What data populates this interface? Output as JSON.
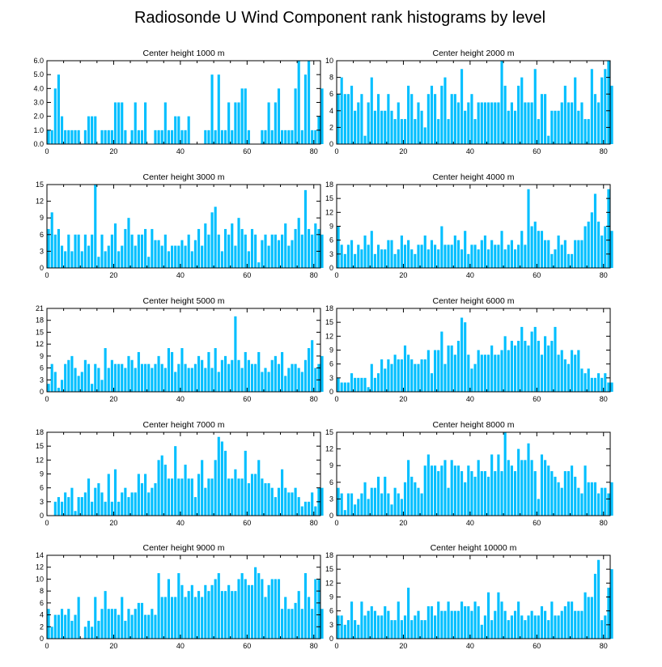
{
  "figure_title": "Radiosonde U Wind Component rank histograms by level",
  "colors": {
    "bar": "#00bfff",
    "axis": "#000000",
    "background": "#ffffff"
  },
  "chart_data": [
    {
      "type": "bar",
      "title": "Center height 1000 m",
      "xlim": [
        0,
        82
      ],
      "ylim": [
        0,
        6
      ],
      "xticks": [
        0,
        20,
        40,
        60,
        80
      ],
      "yticks": [
        0,
        1,
        2,
        3,
        4,
        5,
        6
      ],
      "ytick_labels": [
        "0.0",
        "1.0",
        "2.0",
        "3.0",
        "4.0",
        "5.0",
        "6.0"
      ],
      "values": [
        1,
        1,
        4,
        5,
        2,
        1,
        1,
        1,
        1,
        1,
        0,
        1,
        2,
        2,
        2,
        0,
        1,
        1,
        1,
        1,
        3,
        3,
        3,
        1,
        0,
        1,
        3,
        1,
        1,
        3,
        0,
        0,
        1,
        1,
        1,
        3,
        1,
        1,
        2,
        2,
        1,
        1,
        2,
        0,
        0,
        0,
        0,
        1,
        1,
        5,
        1,
        5,
        1,
        1,
        3,
        1,
        3,
        3,
        4,
        4,
        1,
        0,
        0,
        0,
        1,
        1,
        3,
        1,
        3,
        4,
        1,
        1,
        1,
        1,
        4,
        6,
        1,
        5,
        6,
        1,
        1,
        2,
        4
      ]
    },
    {
      "type": "bar",
      "title": "Center height 2000 m",
      "xlim": [
        0,
        82
      ],
      "ylim": [
        0,
        10
      ],
      "xticks": [
        0,
        20,
        40,
        60,
        80
      ],
      "yticks": [
        0,
        2,
        4,
        6,
        8,
        10
      ],
      "ytick_labels": [
        "0",
        "2",
        "4",
        "6",
        "8",
        "10"
      ],
      "values": [
        6,
        8,
        6,
        6,
        7,
        4,
        5,
        6,
        1,
        5,
        8,
        4,
        6,
        4,
        4,
        6,
        4,
        3,
        5,
        3,
        3,
        7,
        6,
        3,
        5,
        4,
        2,
        6,
        7,
        6,
        3,
        7,
        8,
        3,
        6,
        6,
        5,
        9,
        4,
        5,
        6,
        3,
        5,
        5,
        5,
        5,
        5,
        5,
        5,
        10,
        7,
        4,
        5,
        4,
        7,
        8,
        5,
        5,
        5,
        9,
        3,
        6,
        6,
        1,
        4,
        4,
        4,
        5,
        7,
        5,
        5,
        8,
        4,
        5,
        3,
        3,
        9,
        6,
        5,
        8,
        9,
        10,
        7
      ]
    },
    {
      "type": "bar",
      "title": "Center height 3000 m",
      "xlim": [
        0,
        82
      ],
      "ylim": [
        0,
        15
      ],
      "xticks": [
        0,
        20,
        40,
        60,
        80
      ],
      "yticks": [
        0,
        3,
        6,
        9,
        12,
        15
      ],
      "ytick_labels": [
        "0",
        "3",
        "6",
        "9",
        "12",
        "15"
      ],
      "values": [
        7,
        10,
        6,
        7,
        4,
        3,
        6,
        3,
        6,
        6,
        3,
        6,
        4,
        6,
        15,
        2,
        6,
        3,
        4,
        6,
        8,
        3,
        4,
        7,
        9,
        6,
        4,
        6,
        6,
        7,
        2,
        7,
        5,
        5,
        4,
        6,
        3,
        4,
        4,
        4,
        5,
        4,
        6,
        3,
        5,
        7,
        4,
        8,
        6,
        10,
        11,
        6,
        3,
        7,
        6,
        8,
        4,
        9,
        7,
        6,
        3,
        7,
        6,
        1,
        5,
        6,
        4,
        6,
        6,
        5,
        6,
        8,
        4,
        5,
        7,
        9,
        6,
        14,
        7,
        6,
        8,
        7,
        6
      ]
    },
    {
      "type": "bar",
      "title": "Center height 4000 m",
      "xlim": [
        0,
        82
      ],
      "ylim": [
        0,
        18
      ],
      "xticks": [
        0,
        20,
        40,
        60,
        80
      ],
      "yticks": [
        0,
        3,
        6,
        9,
        12,
        15,
        18
      ],
      "ytick_labels": [
        "0",
        "3",
        "6",
        "9",
        "12",
        "15",
        "18"
      ],
      "values": [
        9,
        5,
        3,
        5,
        6,
        3,
        5,
        4,
        7,
        5,
        8,
        3,
        5,
        4,
        4,
        6,
        6,
        3,
        4,
        7,
        5,
        6,
        4,
        3,
        5,
        5,
        7,
        4,
        6,
        5,
        4,
        9,
        5,
        5,
        5,
        7,
        6,
        4,
        8,
        3,
        5,
        5,
        4,
        6,
        7,
        4,
        6,
        5,
        5,
        8,
        4,
        5,
        6,
        4,
        5,
        8,
        5,
        17,
        9,
        10,
        8,
        8,
        6,
        6,
        3,
        4,
        7,
        5,
        6,
        3,
        3,
        6,
        6,
        6,
        9,
        10,
        12,
        16,
        10,
        7,
        9,
        17,
        8
      ]
    },
    {
      "type": "bar",
      "title": "Center height 5000 m",
      "xlim": [
        0,
        82
      ],
      "ylim": [
        0,
        21
      ],
      "xticks": [
        0,
        20,
        40,
        60,
        80
      ],
      "yticks": [
        0,
        3,
        6,
        9,
        12,
        15,
        18,
        21
      ],
      "ytick_labels": [
        "0",
        "3",
        "6",
        "9",
        "12",
        "15",
        "18",
        "21"
      ],
      "values": [
        2,
        7,
        5,
        1,
        3,
        7,
        8,
        9,
        6,
        4,
        5,
        8,
        7,
        2,
        7,
        6,
        3,
        11,
        6,
        8,
        7,
        7,
        7,
        6,
        9,
        8,
        6,
        10,
        7,
        7,
        7,
        6,
        7,
        9,
        7,
        6,
        11,
        10,
        5,
        7,
        11,
        7,
        6,
        6,
        7,
        9,
        8,
        6,
        10,
        6,
        11,
        5,
        8,
        9,
        7,
        8,
        19,
        8,
        6,
        10,
        8,
        7,
        7,
        10,
        5,
        6,
        5,
        8,
        9,
        7,
        10,
        4,
        6,
        7,
        7,
        6,
        5,
        8,
        11,
        13,
        6,
        7,
        9
      ]
    },
    {
      "type": "bar",
      "title": "Center height 6000 m",
      "xlim": [
        0,
        82
      ],
      "ylim": [
        0,
        18
      ],
      "xticks": [
        0,
        20,
        40,
        60,
        80
      ],
      "yticks": [
        0,
        3,
        6,
        9,
        12,
        15,
        18
      ],
      "ytick_labels": [
        "0",
        "3",
        "6",
        "9",
        "12",
        "15",
        "18"
      ],
      "values": [
        3,
        2,
        2,
        2,
        4,
        3,
        3,
        3,
        3,
        1,
        6,
        3,
        4,
        7,
        5,
        7,
        6,
        8,
        7,
        7,
        10,
        8,
        7,
        6,
        6,
        7,
        7,
        9,
        4,
        9,
        9,
        13,
        6,
        10,
        10,
        8,
        11,
        16,
        15,
        8,
        5,
        6,
        9,
        8,
        8,
        8,
        10,
        8,
        8,
        9,
        12,
        9,
        11,
        10,
        11,
        14,
        11,
        10,
        13,
        14,
        11,
        8,
        12,
        10,
        11,
        14,
        8,
        9,
        7,
        6,
        9,
        8,
        9,
        5,
        4,
        5,
        3,
        3,
        4,
        3,
        4,
        2,
        2
      ]
    },
    {
      "type": "bar",
      "title": "Center height 7000 m",
      "xlim": [
        0,
        82
      ],
      "ylim": [
        0,
        18
      ],
      "xticks": [
        0,
        20,
        40,
        60,
        80
      ],
      "yticks": [
        0,
        3,
        6,
        9,
        12,
        15,
        18
      ],
      "ytick_labels": [
        "0",
        "3",
        "6",
        "9",
        "12",
        "15",
        "18"
      ],
      "values": [
        0,
        0,
        3,
        4,
        3,
        5,
        4,
        6,
        1,
        4,
        4,
        5,
        8,
        3,
        6,
        7,
        5,
        3,
        9,
        3,
        10,
        3,
        5,
        6,
        4,
        5,
        5,
        9,
        7,
        9,
        5,
        6,
        7,
        12,
        13,
        11,
        8,
        8,
        15,
        8,
        8,
        11,
        8,
        8,
        4,
        9,
        12,
        6,
        8,
        8,
        12,
        17,
        16,
        14,
        8,
        8,
        10,
        8,
        8,
        14,
        7,
        9,
        9,
        12,
        8,
        7,
        7,
        6,
        4,
        6,
        10,
        6,
        5,
        5,
        6,
        4,
        2,
        3,
        3,
        5,
        2,
        6,
        6
      ]
    },
    {
      "type": "bar",
      "title": "Center height 8000 m",
      "xlim": [
        0,
        82
      ],
      "ylim": [
        0,
        15
      ],
      "xticks": [
        0,
        20,
        40,
        60,
        80
      ],
      "yticks": [
        0,
        3,
        6,
        9,
        12,
        15
      ],
      "ytick_labels": [
        "0",
        "3",
        "6",
        "9",
        "12",
        "15"
      ],
      "values": [
        5,
        4,
        1,
        4,
        4,
        2,
        3,
        4,
        6,
        3,
        5,
        5,
        7,
        4,
        7,
        4,
        2,
        5,
        4,
        3,
        6,
        10,
        7,
        6,
        5,
        4,
        9,
        11,
        9,
        9,
        8,
        9,
        10,
        5,
        10,
        9,
        9,
        8,
        6,
        9,
        8,
        7,
        10,
        8,
        8,
        7,
        11,
        8,
        11,
        8,
        15,
        10,
        9,
        8,
        12,
        10,
        10,
        13,
        10,
        8,
        3,
        11,
        10,
        9,
        8,
        7,
        6,
        5,
        8,
        8,
        9,
        7,
        5,
        4,
        9,
        6,
        6,
        6,
        4,
        5,
        5,
        4,
        6
      ]
    },
    {
      "type": "bar",
      "title": "Center height 9000 m",
      "xlim": [
        0,
        82
      ],
      "ylim": [
        0,
        14
      ],
      "xticks": [
        0,
        20,
        40,
        60,
        80
      ],
      "yticks": [
        0,
        2,
        4,
        6,
        8,
        10,
        12,
        14
      ],
      "ytick_labels": [
        "0",
        "2",
        "4",
        "6",
        "8",
        "10",
        "12",
        "14"
      ],
      "values": [
        5,
        2,
        4,
        4,
        5,
        4,
        5,
        3,
        4,
        7,
        0,
        2,
        3,
        2,
        7,
        3,
        5,
        8,
        5,
        5,
        5,
        4,
        7,
        3,
        5,
        4,
        5,
        6,
        6,
        4,
        4,
        5,
        4,
        11,
        7,
        7,
        10,
        7,
        7,
        11,
        9,
        7,
        8,
        9,
        7,
        8,
        7,
        9,
        8,
        9,
        10,
        11,
        8,
        8,
        9,
        8,
        8,
        10,
        11,
        10,
        9,
        9,
        12,
        11,
        10,
        7,
        9,
        10,
        10,
        10,
        5,
        7,
        5,
        5,
        6,
        8,
        5,
        11,
        7,
        5,
        10,
        10,
        5
      ]
    },
    {
      "type": "bar",
      "title": "Center height 10000 m",
      "xlim": [
        0,
        82
      ],
      "ylim": [
        0,
        18
      ],
      "xticks": [
        0,
        20,
        40,
        60,
        80
      ],
      "yticks": [
        0,
        3,
        6,
        9,
        12,
        15,
        18
      ],
      "ytick_labels": [
        "0",
        "3",
        "6",
        "9",
        "12",
        "15",
        "18"
      ],
      "values": [
        5,
        5,
        3,
        4,
        8,
        4,
        3,
        8,
        5,
        6,
        7,
        6,
        5,
        5,
        7,
        6,
        4,
        4,
        8,
        4,
        5,
        11,
        4,
        5,
        6,
        4,
        4,
        7,
        7,
        5,
        8,
        6,
        6,
        8,
        6,
        6,
        6,
        8,
        7,
        7,
        6,
        8,
        7,
        3,
        5,
        10,
        4,
        6,
        10,
        8,
        6,
        4,
        5,
        6,
        8,
        5,
        4,
        5,
        6,
        5,
        5,
        7,
        6,
        4,
        8,
        5,
        5,
        6,
        7,
        8,
        8,
        6,
        6,
        6,
        10,
        9,
        9,
        14,
        17,
        4,
        5,
        11,
        15
      ]
    }
  ]
}
